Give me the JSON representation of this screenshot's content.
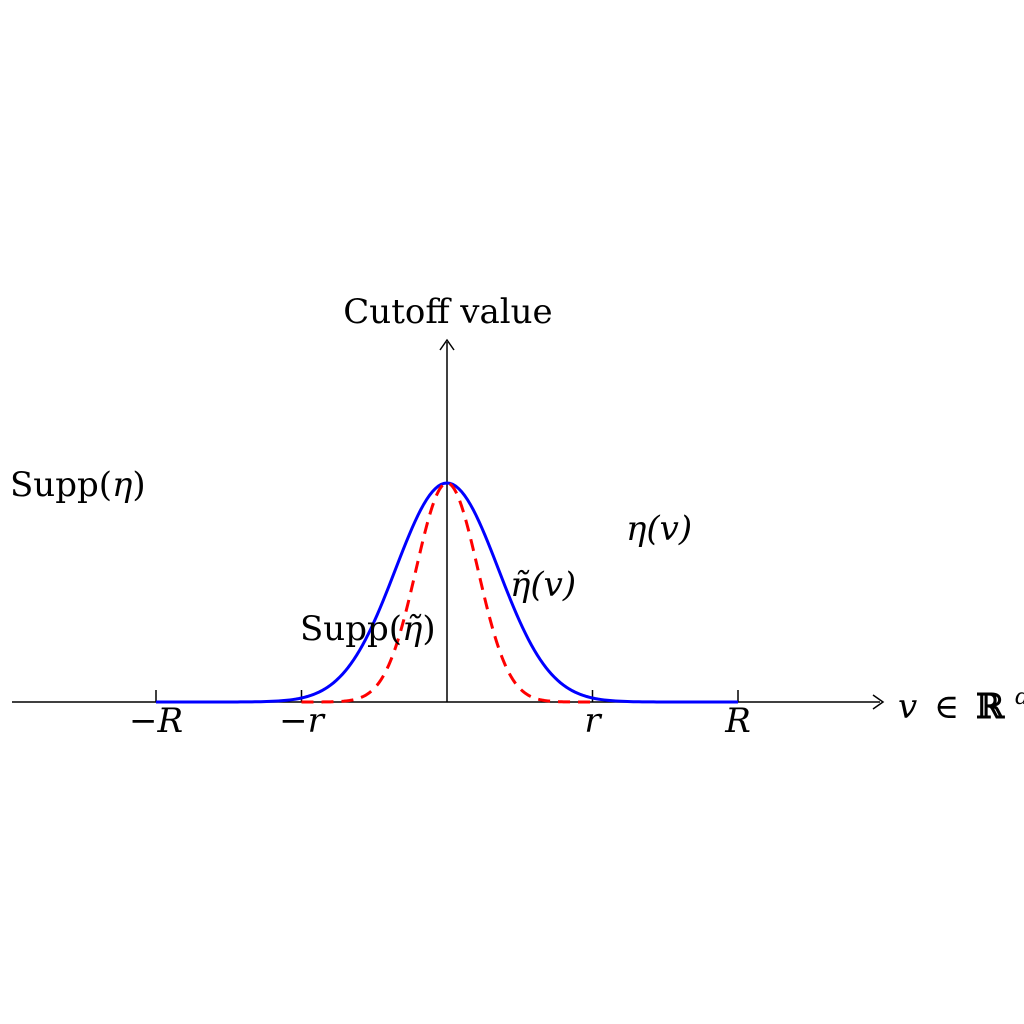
{
  "labels": {
    "y_axis_title": "Cutoff value",
    "x_axis_label_var": "v",
    "x_axis_label_rel": "∈",
    "x_axis_label_set": "ℝ",
    "x_axis_label_exp": "d",
    "supp_eta_text": "Supp(",
    "supp_eta_symbol": "η",
    "supp_eta_close": ")",
    "supp_eta_tilde_text": "Supp(",
    "supp_eta_tilde_symbol": "η̃",
    "supp_eta_tilde_close": ")",
    "eta_curve_label": "η(v)",
    "eta_tilde_curve_label": "η̃(v)"
  },
  "ticks": [
    {
      "label": "−R",
      "x": -2.0
    },
    {
      "label": "−r",
      "x": -1.0
    },
    {
      "label": "r",
      "x": 1.0
    },
    {
      "label": "R",
      "x": 2.0
    }
  ],
  "curves": {
    "eta": {
      "color": "#0000ff",
      "style": "solid",
      "support": [
        -2.0,
        2.0
      ],
      "peak": 1.5
    },
    "eta_tilde": {
      "color": "#ff0000",
      "style": "dashed",
      "support": [
        -1.0,
        1.0
      ],
      "peak": 1.5
    }
  },
  "axes": {
    "xlim": [
      -3.0,
      3.0
    ],
    "ylim": [
      0,
      2.5
    ]
  }
}
